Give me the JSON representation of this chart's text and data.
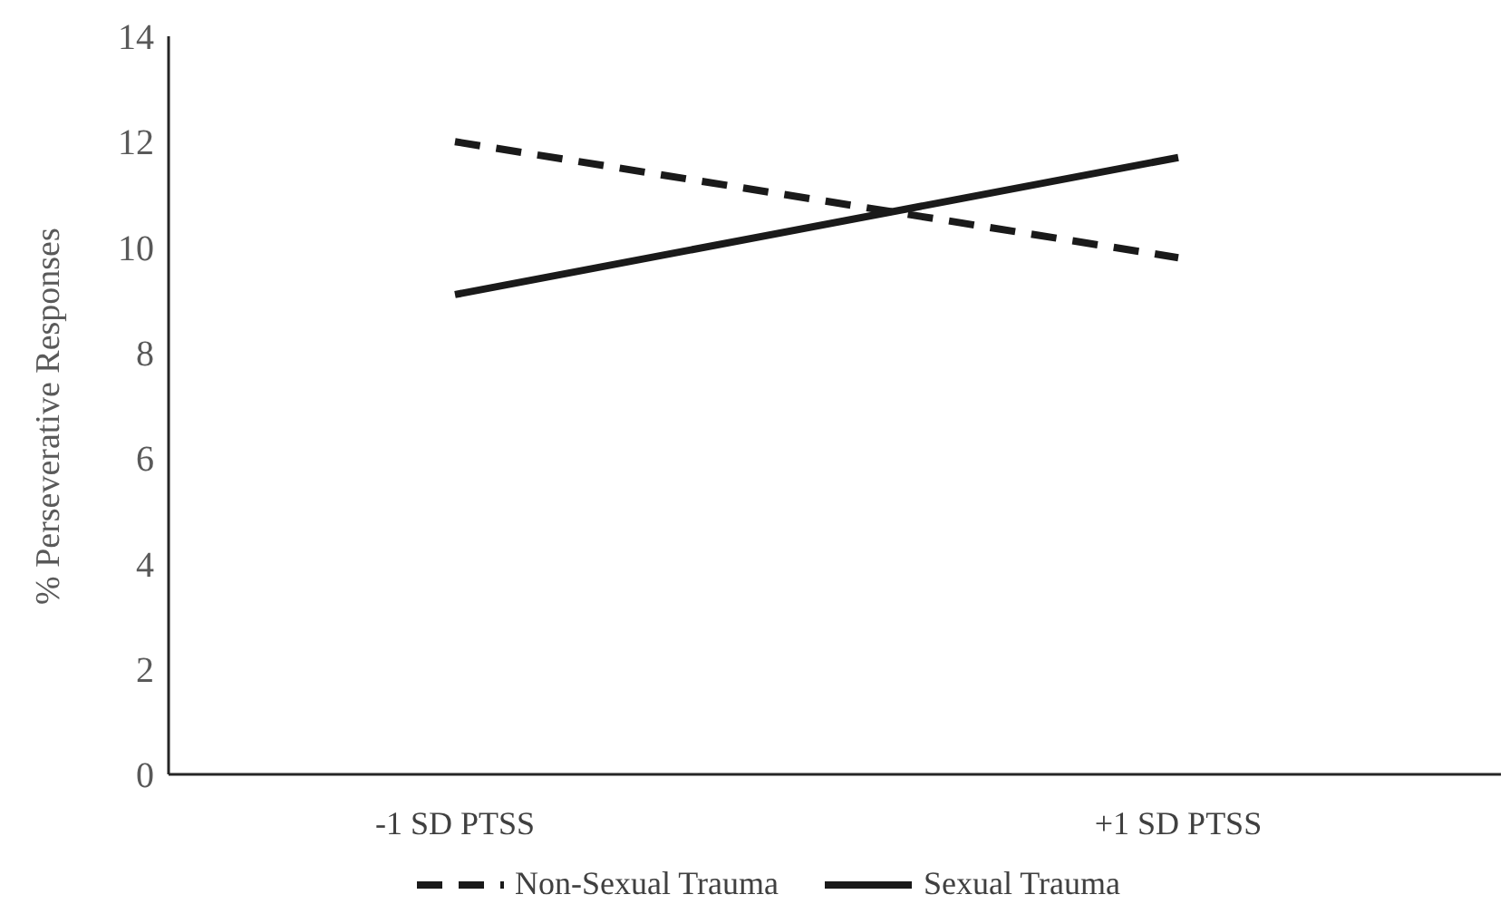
{
  "chart_data": {
    "type": "line",
    "ylabel": "% Perseverative Responses",
    "categories": [
      "-1 SD PTSS",
      "+1 SD PTSS"
    ],
    "series": [
      {
        "name": "Non-Sexual Trauma",
        "color": "#1a1a1a",
        "values": [
          12.0,
          9.8
        ],
        "line_style": "dashed"
      },
      {
        "name": "Sexual Trauma",
        "color": "#1a1a1a",
        "values": [
          9.1,
          11.7
        ],
        "line_style": "solid"
      }
    ],
    "ylim": [
      0,
      14
    ],
    "yticks": [
      0,
      2,
      4,
      6,
      8,
      10,
      12,
      14
    ],
    "grid": false,
    "legend": "bottom",
    "marker": "none"
  }
}
